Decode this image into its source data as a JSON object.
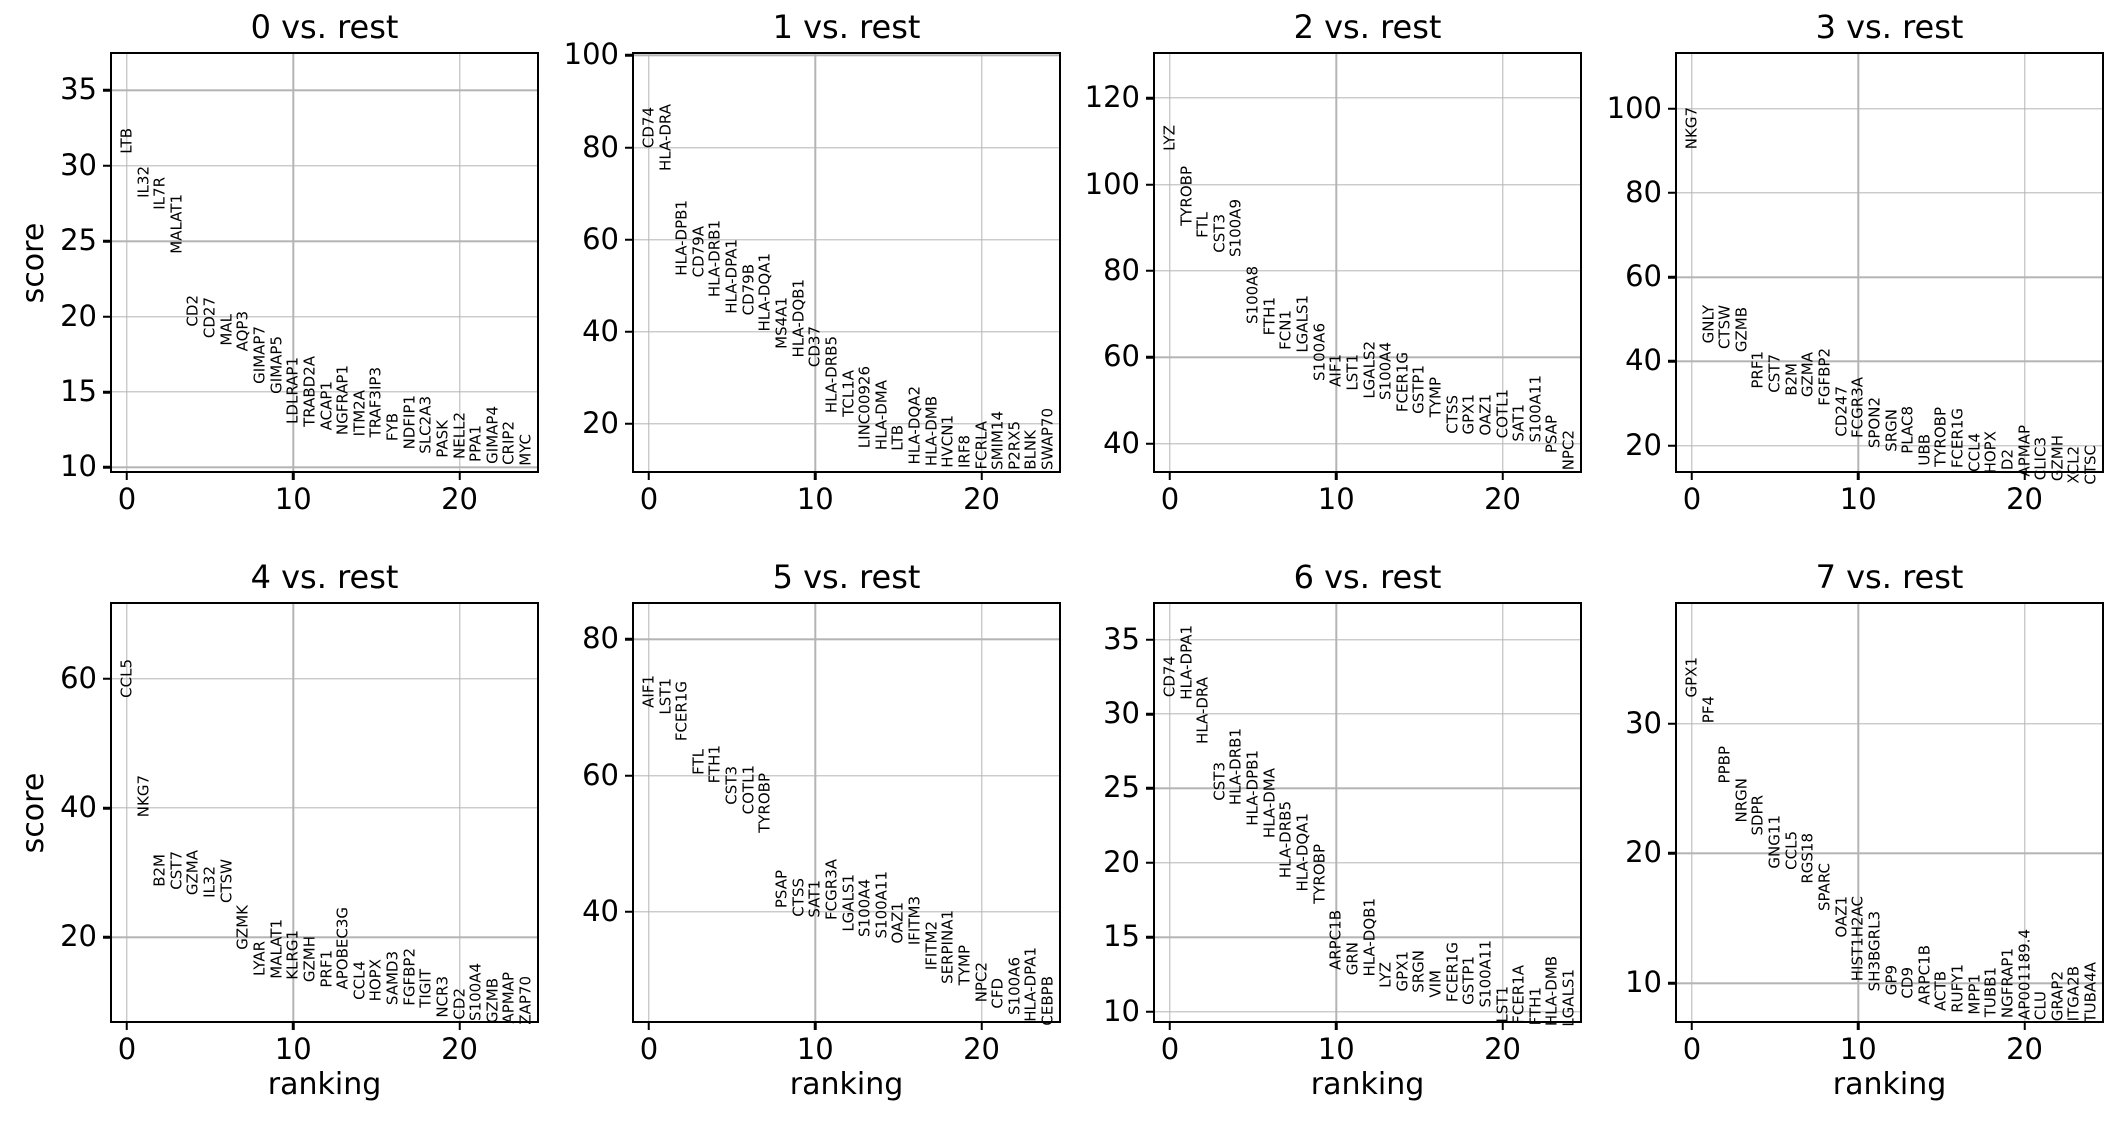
{
  "figure": {
    "background": "#ffffff",
    "text_color": "#000000",
    "grid_color": "#b4b4b4",
    "shared_ylabel": "score",
    "shared_xlabel": "ranking"
  },
  "chart_data": [
    {
      "type": "scatter",
      "title": "0 vs. rest",
      "xlabel": "",
      "ylabel": "score",
      "xlim": [
        -0.9,
        24.9
      ],
      "ylim": [
        9.5,
        37.4
      ],
      "xticks": [
        0,
        10,
        20
      ],
      "yticks": [
        10,
        15,
        20,
        25,
        30,
        35
      ],
      "grid": true,
      "legend": "none",
      "note": "vertical gene labels plotted at (ranking, score); ranking = array index 0-24",
      "genes": [
        "LTB",
        "IL32",
        "IL7R",
        "MALAT1",
        "CD2",
        "CD27",
        "MAL",
        "AQP3",
        "GIMAP7",
        "GIMAP5",
        "LDLRAP1",
        "TRABD2A",
        "ACAP1",
        "NGFRAP1",
        "ITM2A",
        "TRAF3IP3",
        "FYB",
        "NDFIP1",
        "SLC2A3",
        "PASK",
        "NELL2",
        "PPA1",
        "GIMAP4",
        "CRIP2",
        "MYC"
      ],
      "scores": [
        30.5,
        27.6,
        26.8,
        23.9,
        19.1,
        18.3,
        17.8,
        17.4,
        15.3,
        14.6,
        12.6,
        12.4,
        12.2,
        11.9,
        11.8,
        11.7,
        11.5,
        10.9,
        10.65,
        10.4,
        10.3,
        10.1,
        10.0,
        9.9,
        9.85
      ]
    },
    {
      "type": "scatter",
      "title": "1 vs. rest",
      "xlabel": "",
      "ylabel": "",
      "xlim": [
        -0.9,
        24.9
      ],
      "ylim": [
        8.9,
        100.3
      ],
      "xticks": [
        0,
        10,
        20
      ],
      "yticks": [
        20,
        40,
        60,
        80,
        100
      ],
      "grid": true,
      "legend": "none",
      "genes": [
        "CD74",
        "HLA-DRA",
        "HLA-DPB1",
        "CD79A",
        "HLA-DRB1",
        "HLA-DPA1",
        "CD79B",
        "HLA-DQA1",
        "MS4A1",
        "HLA-DQB1",
        "CD37",
        "HLA-DRB5",
        "TCL1A",
        "LINC00926",
        "HLA-DMA",
        "LTB",
        "HLA-DQA2",
        "HLA-DMB",
        "HVCN1",
        "IRF8",
        "FCRLA",
        "SMIM14",
        "P2RX5",
        "BLNK",
        "SWAP70"
      ],
      "scores": [
        79.1,
        74.0,
        51.3,
        51.0,
        46.7,
        43.1,
        42.7,
        39.1,
        35.5,
        33.5,
        31.5,
        21.5,
        20.7,
        13.9,
        13.5,
        13.2,
        10.3,
        9.9,
        9.7,
        9.5,
        9.3,
        9.2,
        9.15,
        9.1,
        9.05
      ]
    },
    {
      "type": "scatter",
      "title": "2 vs. rest",
      "xlabel": "",
      "ylabel": "",
      "xlim": [
        -0.9,
        24.9
      ],
      "ylim": [
        32.8,
        130.2
      ],
      "xticks": [
        0,
        10,
        20
      ],
      "yticks": [
        40,
        60,
        80,
        100,
        120
      ],
      "grid": true,
      "legend": "none",
      "genes": [
        "LYZ",
        "TYROBP",
        "FTL",
        "CST3",
        "S100A9",
        "S100A8",
        "FTH1",
        "FCN1",
        "LGALS1",
        "S100A6",
        "AIF1",
        "LST1",
        "LGALS2",
        "S100A4",
        "FCER1G",
        "GSTP1",
        "TYMP",
        "CTSS",
        "GPX1",
        "OAZ1",
        "COTL1",
        "SAT1",
        "S100A11",
        "PSAP",
        "NPC2"
      ],
      "scores": [
        106.8,
        89.4,
        86.8,
        83.4,
        82.3,
        66.8,
        64.2,
        60.8,
        60.1,
        53.7,
        52.2,
        51.4,
        49.5,
        49.2,
        46.5,
        46.0,
        45.3,
        41.5,
        41.2,
        40.9,
        40.4,
        39.6,
        39.3,
        37.0,
        32.9
      ]
    },
    {
      "type": "scatter",
      "title": "3 vs. rest",
      "xlabel": "",
      "ylabel": "",
      "xlim": [
        -0.9,
        24.9
      ],
      "ylim": [
        13.0,
        113.0
      ],
      "xticks": [
        0,
        10,
        20
      ],
      "yticks": [
        20,
        40,
        60,
        80,
        100
      ],
      "grid": true,
      "legend": "none",
      "genes": [
        "NKG7",
        "GNLY",
        "CTSW",
        "GZMB",
        "PRF1",
        "CST7",
        "B2M",
        "GZMA",
        "FGFBP2",
        "CD247",
        "FCGR3A",
        "SPON2",
        "SRGN",
        "PLAC8",
        "UBB",
        "TYROBP",
        "FCER1G",
        "CCL4",
        "HOPX",
        "ID2",
        "APMAP",
        "CLIC3",
        "GZMH",
        "XCL2",
        "CTSC"
      ],
      "scores": [
        89.4,
        43.2,
        42.0,
        41.2,
        32.5,
        31.7,
        30.9,
        30.5,
        28.5,
        21.2,
        20.8,
        18.4,
        17.6,
        17.2,
        14.4,
        14.0,
        13.7,
        12.9,
        12.5,
        12.1,
        11.7,
        10.9,
        10.5,
        10.1,
        9.7
      ]
    },
    {
      "type": "scatter",
      "title": "4 vs. rest",
      "xlabel": "ranking",
      "ylabel": "score",
      "xlim": [
        -0.9,
        24.9
      ],
      "ylim": [
        6.4,
        71.6
      ],
      "xticks": [
        0,
        10,
        20
      ],
      "yticks": [
        20,
        40,
        60
      ],
      "grid": true,
      "legend": "none",
      "genes": [
        "CCL5",
        "NKG7",
        "B2M",
        "CST7",
        "GZMA",
        "IL32",
        "CTSW",
        "GZMK",
        "LYAR",
        "MALAT1",
        "KLRG1",
        "GZMH",
        "PRF1",
        "APOBEC3G",
        "CCL4",
        "HOPX",
        "SAMD3",
        "FGFBP2",
        "TIGIT",
        "NCR3",
        "CD2",
        "S100A4",
        "GZMB",
        "APMAP",
        "ZAP70"
      ],
      "scores": [
        56.4,
        37.9,
        27.2,
        26.7,
        25.9,
        25.4,
        24.6,
        17.5,
        13.3,
        13.0,
        12.8,
        12.5,
        11.5,
        11.2,
        9.7,
        9.4,
        8.9,
        8.7,
        8.4,
        6.9,
        6.6,
        6.4,
        6.1,
        6.0,
        5.9
      ]
    },
    {
      "type": "scatter",
      "title": "5 vs. rest",
      "xlabel": "ranking",
      "ylabel": "",
      "xlim": [
        -0.9,
        24.9
      ],
      "ylim": [
        23.4,
        85.2
      ],
      "xticks": [
        0,
        10,
        20
      ],
      "yticks": [
        40,
        60,
        80
      ],
      "grid": true,
      "legend": "none",
      "genes": [
        "AIF1",
        "LST1",
        "FCER1G",
        "FTL",
        "FTH1",
        "CST3",
        "COTL1",
        "TYROBP",
        "PSAP",
        "CTSS",
        "SAT1",
        "FCGR3A",
        "LGALS1",
        "S100A4",
        "S100A11",
        "OAZ1",
        "IFITM3",
        "IFITM2",
        "SERPINA1",
        "TYMP",
        "NPC2",
        "CFD",
        "S100A6",
        "HLA-DPA1",
        "CEBPB"
      ],
      "scores": [
        69.4,
        68.4,
        64.5,
        59.5,
        58.3,
        55.1,
        53.7,
        51.0,
        39.9,
        38.7,
        38.6,
        38.2,
        36.5,
        35.7,
        35.5,
        34.8,
        34.5,
        30.9,
        28.9,
        28.7,
        26.2,
        25.2,
        24.3,
        23.3,
        22.8
      ]
    },
    {
      "type": "scatter",
      "title": "6 vs. rest",
      "xlabel": "ranking",
      "ylabel": "",
      "xlim": [
        -0.9,
        24.9
      ],
      "ylim": [
        9.1,
        37.4
      ],
      "xticks": [
        0,
        10,
        20
      ],
      "yticks": [
        10,
        15,
        20,
        25,
        30,
        35
      ],
      "grid": true,
      "legend": "none",
      "genes": [
        "CD74",
        "HLA-DPA1",
        "HLA-DRA",
        "CST3",
        "HLA-DRB1",
        "HLA-DPB1",
        "HLA-DMA",
        "HLA-DRB5",
        "HLA-DQA1",
        "TYROBP",
        "ARPC1B",
        "GRN",
        "HLA-DQB1",
        "LYZ",
        "GPX1",
        "SRGN",
        "VIM",
        "FCER1G",
        "GSTP1",
        "S100A11",
        "LST1",
        "FCER1A",
        "FTH1",
        "HLA-DMB",
        "LGALS1"
      ],
      "scores": [
        30.9,
        30.7,
        27.7,
        23.9,
        23.6,
        22.2,
        21.4,
        18.7,
        17.8,
        17.0,
        12.5,
        12.2,
        12.1,
        11.3,
        11.1,
        11.0,
        10.65,
        10.4,
        10.2,
        10.0,
        9.0,
        8.9,
        8.8,
        8.75,
        8.7
      ]
    },
    {
      "type": "scatter",
      "title": "7 vs. rest",
      "xlabel": "ranking",
      "ylabel": "",
      "xlim": [
        -0.9,
        24.9
      ],
      "ylim": [
        6.8,
        39.2
      ],
      "xticks": [
        0,
        10,
        20
      ],
      "yticks": [
        10,
        20,
        30
      ],
      "grid": true,
      "legend": "none",
      "genes": [
        "GPX1",
        "PF4",
        "PPBP",
        "NRGN",
        "SDPR",
        "GNG11",
        "CCL5",
        "RGS18",
        "SPARC",
        "OAZ1",
        "HIST1H2AC",
        "SH3BGRL3",
        "GP9",
        "CD9",
        "ARPC1B",
        "ACTB",
        "RUFY1",
        "MPP1",
        "TUBB1",
        "NGFRAP1",
        "AP001189.4",
        "CLU",
        "GRAP2",
        "ITGA2B",
        "TUBA4A"
      ],
      "scores": [
        31.7,
        29.7,
        25.1,
        22.1,
        21.1,
        18.5,
        18.4,
        17.4,
        15.3,
        13.2,
        9.9,
        9.1,
        8.8,
        8.5,
        8.0,
        7.6,
        7.4,
        7.3,
        7.1,
        7.0,
        6.9,
        6.85,
        6.8,
        6.75,
        6.7
      ]
    }
  ]
}
